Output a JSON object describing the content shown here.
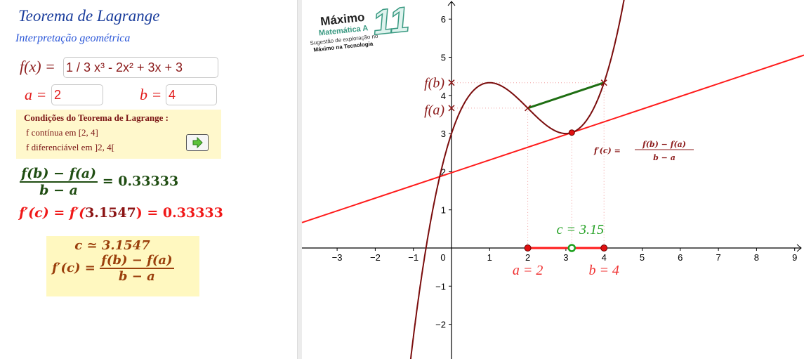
{
  "header": {
    "title": "Teorema de Lagrange",
    "subtitle": "Interpretação geométrica"
  },
  "inputs": {
    "f_label": "f(x) =",
    "f_value": "1 / 3 x³ - 2x² + 3x + 3",
    "a_label": "a =",
    "a_value": "2",
    "b_label": "b =",
    "b_value": "4"
  },
  "conditions": {
    "heading": "Condições do Teorema de Lagrange :",
    "line1": "f contínua em [2, 4]",
    "line2": "f diferenciável em ]2, 4[",
    "button_icon": "arrow-right-icon"
  },
  "results": {
    "secant_num": "f(b) − f(a)",
    "secant_den": "b − a",
    "secant_value": "= 0.33333",
    "deriv_left": "f′(c) = f′(",
    "deriv_c": "3.1547",
    "deriv_right": ") = 0.33333",
    "box_c": "c ≃ 3.1547",
    "box_lhs": "f′(c) =",
    "box_num": "f(b) − f(a)",
    "box_den": "b − a"
  },
  "logo": {
    "line1": "Máximo",
    "line2": "Matemática A",
    "line3": "Sugestão de exploração no",
    "line4": "Máximo na Tecnologia",
    "number": "11"
  },
  "graph": {
    "x_ticks": [
      -3,
      -2,
      -1,
      0,
      1,
      2,
      3,
      4,
      5,
      6,
      7,
      8,
      9
    ],
    "y_ticks": [
      -2,
      -1,
      1,
      2,
      3,
      4,
      5,
      6
    ],
    "xlim": [
      -3.9,
      9.2
    ],
    "ylim": [
      -2.9,
      6.5
    ],
    "function": {
      "coeffs": [
        0.3333333,
        -2,
        3,
        3
      ],
      "color": "#7a0c0c"
    },
    "a": 2,
    "b": 4,
    "c": 3.1547,
    "fa_label": "f(a)",
    "fb_label": "f(b)",
    "a_point_label": "a = 2",
    "b_point_label": "b = 4",
    "c_label": "c = 3.15",
    "annot_lhs": "f′(c) =",
    "annot_num": "f(b) − f(a)",
    "annot_den": "b − a",
    "colors": {
      "tangent": "#ff1a1a",
      "secant": "#1e6e12",
      "interval": "#ff1a1a",
      "c_point": "#1ea01e",
      "guide": "#f0a0a0"
    }
  }
}
